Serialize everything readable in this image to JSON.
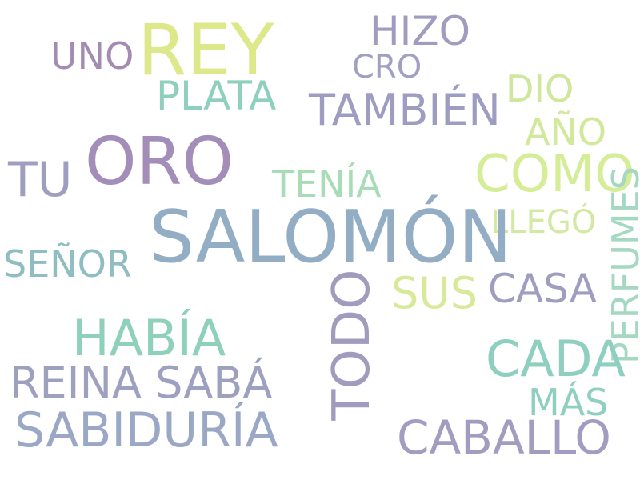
{
  "words": [
    {
      "id": "rey",
      "text": "REY",
      "color": "#dde88a"
    },
    {
      "id": "uno",
      "text": "UNO",
      "color": "#a38bb2"
    },
    {
      "id": "hizo",
      "text": "HIZO",
      "color": "#a09cbf"
    },
    {
      "id": "cro",
      "text": "CRO",
      "color": "#a2a0c2"
    },
    {
      "id": "plata",
      "text": "PLATA",
      "color": "#8fcfbe"
    },
    {
      "id": "tambien",
      "text": "TAMBIÉN",
      "color": "#9e9cc0"
    },
    {
      "id": "dio",
      "text": "DIO",
      "color": "#cfe69c"
    },
    {
      "id": "ano",
      "text": "AÑO",
      "color": "#d2e89c"
    },
    {
      "id": "oro",
      "text": "ORO",
      "color": "#a38db9"
    },
    {
      "id": "tu",
      "text": "TU",
      "color": "#a09ec0"
    },
    {
      "id": "como",
      "text": "COMO",
      "color": "#d6ed98"
    },
    {
      "id": "tenia",
      "text": "TENÍA",
      "color": "#a8dcb6"
    },
    {
      "id": "perfumes",
      "text": "PERFUMES",
      "color": "#a4d8c0"
    },
    {
      "id": "llego",
      "text": "LLEGÓ",
      "color": "#d3e8a2"
    },
    {
      "id": "salomon",
      "text": "SALOMÓN",
      "color": "#93aec4"
    },
    {
      "id": "senor",
      "text": "SEÑOR",
      "color": "#8fbdc2"
    },
    {
      "id": "sus",
      "text": "SUS",
      "color": "#d8ea9a"
    },
    {
      "id": "casa",
      "text": "CASA",
      "color": "#a09ec0"
    },
    {
      "id": "todo",
      "text": "TODO",
      "color": "#a19cbd"
    },
    {
      "id": "habia",
      "text": "HABÍA",
      "color": "#8fd0ba"
    },
    {
      "id": "cada",
      "text": "CADA",
      "color": "#8ecfbf"
    },
    {
      "id": "reina-saba",
      "text": "REINA SABÁ",
      "color": "#9ea0c0"
    },
    {
      "id": "mas",
      "text": "MÁS",
      "color": "#8fcfbf"
    },
    {
      "id": "sabiduria",
      "text": "SABIDURÍA",
      "color": "#9aa8c6"
    },
    {
      "id": "caballo",
      "text": "CABALLO",
      "color": "#a29cc0"
    }
  ]
}
